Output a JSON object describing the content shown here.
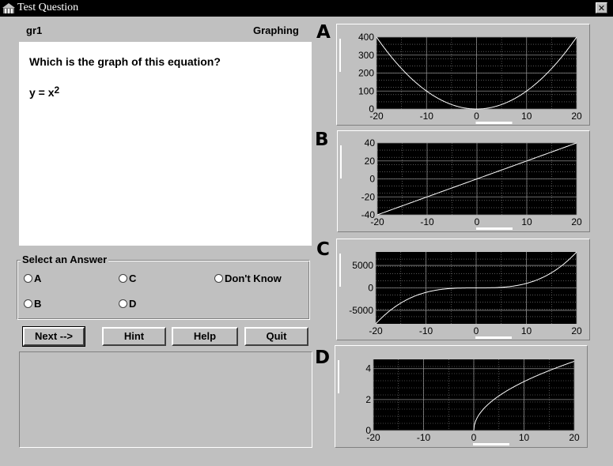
{
  "window": {
    "title": "Test Question",
    "close_glyph": "✕"
  },
  "question": {
    "id": "gr1",
    "category": "Graphing",
    "prompt": "Which is the graph of this equation?",
    "equation_base": "y = x",
    "equation_exp": "2"
  },
  "answers": {
    "legend": "Select an Answer",
    "options": [
      "A",
      "B",
      "C",
      "D",
      "Don't Know"
    ]
  },
  "buttons": {
    "next": "Next -->",
    "hint": "Hint",
    "help": "Help",
    "quit": "Quit"
  },
  "charts": [
    {
      "letter": "A",
      "type": "line",
      "function": "x^2",
      "x": [
        -20,
        -15,
        -10,
        -5,
        0,
        5,
        10,
        15,
        20
      ],
      "y": [
        400,
        225,
        100,
        25,
        0,
        25,
        100,
        225,
        400
      ],
      "xlim": [
        -20,
        20
      ],
      "ylim": [
        0,
        400
      ],
      "xticks": [
        "-20",
        "-10",
        "0",
        "10",
        "20"
      ],
      "xtick_vals": [
        -20,
        -10,
        0,
        10,
        20
      ],
      "yticks": [
        "0",
        "100",
        "200",
        "300",
        "400"
      ],
      "ytick_vals": [
        0,
        100,
        200,
        300,
        400
      ]
    },
    {
      "letter": "B",
      "type": "line",
      "function": "2x",
      "x": [
        -20,
        20
      ],
      "y": [
        -40,
        40
      ],
      "xlim": [
        -20,
        20
      ],
      "ylim": [
        -40,
        40
      ],
      "xticks": [
        "-20",
        "-10",
        "0",
        "10",
        "20"
      ],
      "xtick_vals": [
        -20,
        -10,
        0,
        10,
        20
      ],
      "yticks": [
        "-40",
        "-20",
        "0",
        "20",
        "40"
      ],
      "ytick_vals": [
        -40,
        -20,
        0,
        20,
        40
      ]
    },
    {
      "letter": "C",
      "type": "line",
      "function": "x^3",
      "x": [
        -20,
        -15,
        -10,
        -5,
        0,
        5,
        10,
        15,
        20
      ],
      "y": [
        -8000,
        -3375,
        -1000,
        -125,
        0,
        125,
        1000,
        3375,
        8000
      ],
      "xlim": [
        -20,
        20
      ],
      "ylim": [
        -8000,
        8000
      ],
      "xticks": [
        "-20",
        "-10",
        "0",
        "10",
        "20"
      ],
      "xtick_vals": [
        -20,
        -10,
        0,
        10,
        20
      ],
      "yticks": [
        "-5000",
        "0",
        "5000"
      ],
      "ytick_vals": [
        -5000,
        0,
        5000
      ]
    },
    {
      "letter": "D",
      "type": "line",
      "function": "sqrt(x)",
      "x": [
        0,
        0.5,
        1,
        2,
        4,
        6,
        9,
        12,
        16,
        20
      ],
      "y": [
        0,
        0.71,
        1,
        1.41,
        2,
        2.45,
        3,
        3.46,
        4,
        4.47
      ],
      "xlim": [
        -20,
        20
      ],
      "ylim": [
        0,
        4.6
      ],
      "xticks": [
        "-20",
        "-10",
        "0",
        "10",
        "20"
      ],
      "xtick_vals": [
        -20,
        -10,
        0,
        10,
        20
      ],
      "yticks": [
        "0",
        "2",
        "4"
      ],
      "ytick_vals": [
        0,
        2,
        4
      ]
    }
  ],
  "colors": {
    "plot_bg": "#000000",
    "grid": "#8a8a8a",
    "curve": "#ffffff"
  }
}
